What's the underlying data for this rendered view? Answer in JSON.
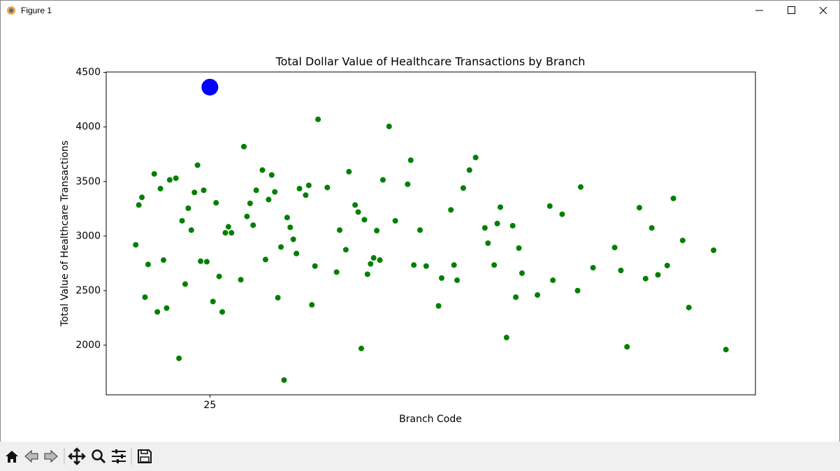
{
  "window": {
    "title": "Figure 1"
  },
  "chart_data": {
    "type": "scatter",
    "title": "Total Dollar Value of Healthcare Transactions by Branch",
    "x_label": "Branch Code",
    "y_label": "Total Value of Healthcare Transactions",
    "xlim": [
      -8.55,
      201.55
    ],
    "xticks": [
      25
    ],
    "ylim": [
      1545,
      4504
    ],
    "yticks": [
      2000,
      2500,
      3000,
      3500,
      4000,
      4500
    ],
    "series": [
      {
        "color": "green",
        "x": [
          1,
          2,
          3,
          4,
          5,
          7,
          8,
          9,
          10,
          11,
          12,
          14,
          15,
          16,
          17,
          18,
          19,
          20,
          21,
          22,
          23,
          24,
          26,
          27,
          28,
          29,
          30,
          31,
          32,
          35,
          36,
          37,
          38,
          39,
          40,
          42,
          43,
          44,
          45,
          46,
          47,
          48,
          49,
          50,
          51,
          52,
          53,
          54,
          56,
          57,
          58,
          59,
          60,
          63,
          66,
          67,
          69,
          70,
          72,
          73,
          74,
          75,
          76,
          77,
          78,
          79,
          80,
          81,
          83,
          85,
          89,
          90,
          91,
          93,
          95,
          99,
          100,
          103,
          104,
          105,
          107,
          109,
          111,
          114,
          115,
          117,
          118,
          119,
          121,
          123,
          124,
          125,
          126,
          131,
          135,
          136,
          139,
          144,
          145,
          149,
          156,
          158,
          160,
          164,
          166,
          168,
          170,
          173,
          175,
          178,
          180,
          188,
          192
        ],
        "values": [
          2920,
          3285,
          3355,
          2440,
          2740,
          3570,
          2305,
          3435,
          2780,
          2340,
          3515,
          3530,
          1880,
          3140,
          2560,
          3255,
          3055,
          3400,
          3650,
          2770,
          3420,
          2765,
          2400,
          3305,
          2630,
          2305,
          3030,
          3085,
          3030,
          2600,
          3820,
          3180,
          3300,
          3100,
          3420,
          3605,
          2785,
          3335,
          3560,
          3405,
          2435,
          2900,
          1680,
          3170,
          3080,
          2970,
          2840,
          3435,
          3375,
          3465,
          2370,
          2725,
          4070,
          3445,
          2670,
          3055,
          2875,
          3590,
          3285,
          3220,
          1970,
          3150,
          2650,
          2745,
          2800,
          3050,
          2780,
          3515,
          4005,
          3140,
          3475,
          3695,
          2735,
          3055,
          2725,
          2360,
          2615,
          3240,
          2735,
          2595,
          3440,
          3605,
          3720,
          3075,
          2935,
          2735,
          3115,
          3265,
          2070,
          3095,
          2440,
          2890,
          2660,
          2460,
          3275,
          2595,
          3200,
          2500,
          3450,
          2710,
          2895,
          2685,
          1985,
          3260,
          2610,
          3075,
          2645,
          2730,
          3345,
          2960,
          2345,
          2870,
          1960
        ]
      },
      {
        "color": "blue",
        "highlight": true,
        "x": [
          25
        ],
        "values": [
          4365
        ]
      }
    ]
  }
}
